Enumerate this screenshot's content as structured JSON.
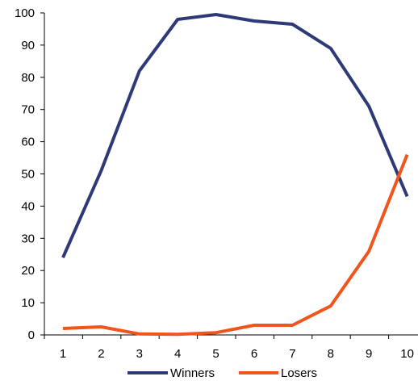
{
  "chart_data": {
    "type": "line",
    "title": "",
    "xlabel": "",
    "ylabel": "",
    "x": [
      1,
      2,
      3,
      4,
      5,
      6,
      7,
      8,
      9,
      10
    ],
    "x_tick_labels": [
      "1",
      "2",
      "3",
      "4",
      "5",
      "6",
      "7",
      "8",
      "9",
      "10"
    ],
    "ylim": [
      0,
      100
    ],
    "y_tick_labels": [
      "0",
      "10",
      "20",
      "30",
      "40",
      "50",
      "60",
      "70",
      "80",
      "90",
      "100"
    ],
    "grid": false,
    "legend_position": "bottom",
    "series": [
      {
        "name": "Winners",
        "color": "#2e3a78",
        "values": [
          24,
          51,
          82,
          98,
          99.5,
          97.5,
          96.5,
          89,
          71,
          43
        ]
      },
      {
        "name": "Losers",
        "color": "#f0561b",
        "values": [
          2,
          2.5,
          0.3,
          0.2,
          0.7,
          3,
          3,
          9,
          26,
          56
        ]
      }
    ]
  }
}
